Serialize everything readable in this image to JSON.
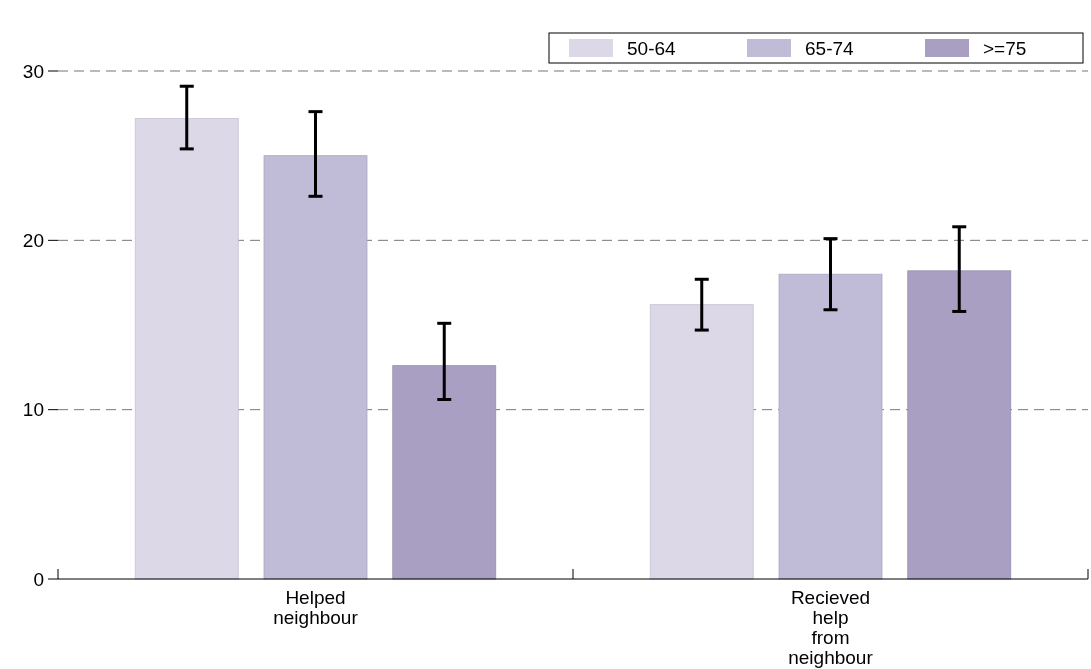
{
  "chart_data": {
    "type": "bar",
    "categories": [
      "Helped neighbour",
      "Recieved help from neighbour"
    ],
    "series": [
      {
        "name": "50-64",
        "color": "#dcd8e8",
        "values": [
          27.2,
          16.2
        ],
        "errors": [
          [
            25.4,
            29.1
          ],
          [
            14.7,
            17.7
          ]
        ]
      },
      {
        "name": "65-74",
        "color": "#c0bbd6",
        "values": [
          25.0,
          18.0
        ],
        "errors": [
          [
            22.6,
            27.6
          ],
          [
            15.9,
            20.1
          ]
        ]
      },
      {
        "name": ">=75",
        "color": "#a89fc3",
        "values": [
          12.6,
          18.2
        ],
        "errors": [
          [
            10.6,
            15.1
          ],
          [
            15.8,
            20.8
          ]
        ]
      }
    ],
    "ylim": [
      0,
      30
    ],
    "yticks": [
      0,
      10,
      20,
      30
    ],
    "grid": "y",
    "legend": "top right"
  }
}
